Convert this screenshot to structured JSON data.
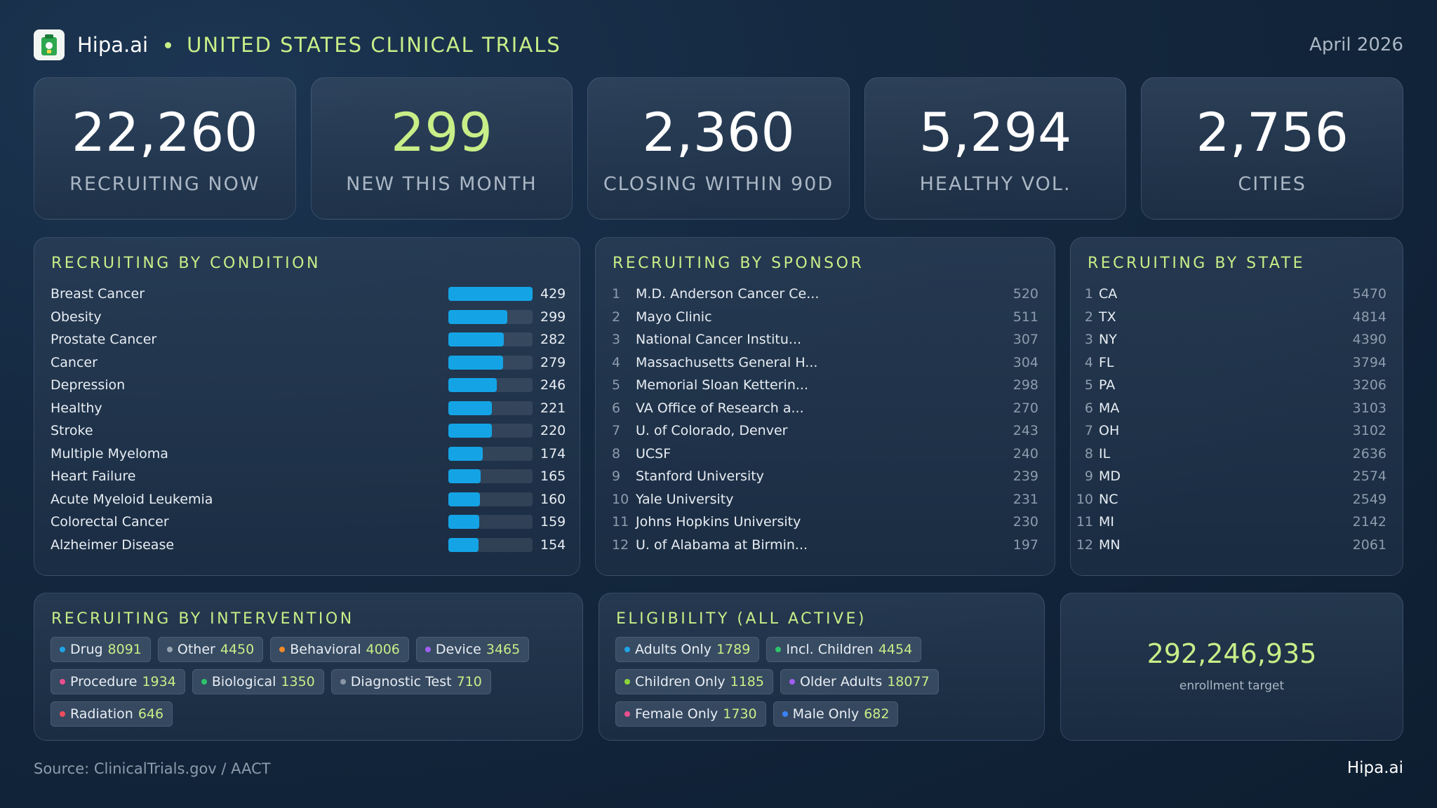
{
  "header": {
    "brand": "Hipa.ai",
    "title": "UNITED STATES  CLINICAL TRIALS",
    "date": "April 2026"
  },
  "kpis": [
    {
      "value": "22,260",
      "label": "RECRUITING NOW"
    },
    {
      "value": "299",
      "label": "NEW THIS MONTH"
    },
    {
      "value": "2,360",
      "label": "CLOSING WITHIN 90D"
    },
    {
      "value": "5,294",
      "label": "HEALTHY VOL."
    },
    {
      "value": "2,756",
      "label": "CITIES"
    }
  ],
  "conditions": {
    "title": "RECRUITING BY CONDITION",
    "bar_max": 429,
    "bar_color": "#14a4e6",
    "items": [
      {
        "name": "Breast Cancer",
        "value": 429
      },
      {
        "name": "Obesity",
        "value": 299
      },
      {
        "name": "Prostate Cancer",
        "value": 282
      },
      {
        "name": "Cancer",
        "value": 279
      },
      {
        "name": "Depression",
        "value": 246
      },
      {
        "name": "Healthy",
        "value": 221
      },
      {
        "name": "Stroke",
        "value": 220
      },
      {
        "name": "Multiple Myeloma",
        "value": 174
      },
      {
        "name": "Heart Failure",
        "value": 165
      },
      {
        "name": "Acute Myeloid Leukemia",
        "value": 160
      },
      {
        "name": "Colorectal Cancer",
        "value": 159
      },
      {
        "name": "Alzheimer Disease",
        "value": 154
      }
    ]
  },
  "sponsors": {
    "title": "RECRUITING BY SPONSOR",
    "items": [
      {
        "rank": "1",
        "name": "M.D. Anderson Cancer Ce...",
        "value": "520"
      },
      {
        "rank": "2",
        "name": "Mayo Clinic",
        "value": "511"
      },
      {
        "rank": "3",
        "name": "National Cancer Institu...",
        "value": "307"
      },
      {
        "rank": "4",
        "name": "Massachusetts General H...",
        "value": "304"
      },
      {
        "rank": "5",
        "name": "Memorial Sloan Ketterin...",
        "value": "298"
      },
      {
        "rank": "6",
        "name": "VA Office of Research a...",
        "value": "270"
      },
      {
        "rank": "7",
        "name": "U. of Colorado, Denver",
        "value": "243"
      },
      {
        "rank": "8",
        "name": "UCSF",
        "value": "240"
      },
      {
        "rank": "9",
        "name": "Stanford University",
        "value": "239"
      },
      {
        "rank": "10",
        "name": "Yale University",
        "value": "231"
      },
      {
        "rank": "11",
        "name": "Johns Hopkins University",
        "value": "230"
      },
      {
        "rank": "12",
        "name": "U. of Alabama at Birmin...",
        "value": "197"
      }
    ]
  },
  "states": {
    "title": "RECRUITING BY STATE",
    "items": [
      {
        "rank": "1",
        "name": "CA",
        "value": "5470"
      },
      {
        "rank": "2",
        "name": "TX",
        "value": "4814"
      },
      {
        "rank": "3",
        "name": "NY",
        "value": "4390"
      },
      {
        "rank": "4",
        "name": "FL",
        "value": "3794"
      },
      {
        "rank": "5",
        "name": "PA",
        "value": "3206"
      },
      {
        "rank": "6",
        "name": "MA",
        "value": "3103"
      },
      {
        "rank": "7",
        "name": "OH",
        "value": "3102"
      },
      {
        "rank": "8",
        "name": "IL",
        "value": "2636"
      },
      {
        "rank": "9",
        "name": "MD",
        "value": "2574"
      },
      {
        "rank": "10",
        "name": "NC",
        "value": "2549"
      },
      {
        "rank": "11",
        "name": "MI",
        "value": "2142"
      },
      {
        "rank": "12",
        "name": "MN",
        "value": "2061"
      }
    ]
  },
  "interventions": {
    "title": "RECRUITING BY INTERVENTION",
    "items": [
      {
        "name": "Drug",
        "value": "8091",
        "color": "#1fa4e6"
      },
      {
        "name": "Other",
        "value": "4450",
        "color": "#9aa5b3"
      },
      {
        "name": "Behavioral",
        "value": "4006",
        "color": "#f08a24"
      },
      {
        "name": "Device",
        "value": "3465",
        "color": "#a15ef0"
      },
      {
        "name": "Procedure",
        "value": "1934",
        "color": "#ec4f8f"
      },
      {
        "name": "Biological",
        "value": "1350",
        "color": "#2ec46a"
      },
      {
        "name": "Diagnostic Test",
        "value": "710",
        "color": "#8a96a5"
      },
      {
        "name": "Radiation",
        "value": "646",
        "color": "#ee4d5e"
      }
    ]
  },
  "eligibility": {
    "title": "ELIGIBILITY (ALL ACTIVE)",
    "items": [
      {
        "name": "Adults Only",
        "value": "1789",
        "color": "#1fa4e6"
      },
      {
        "name": "Incl. Children",
        "value": "4454",
        "color": "#2ec46a"
      },
      {
        "name": "Children Only",
        "value": "1185",
        "color": "#8cd63c"
      },
      {
        "name": "Older Adults",
        "value": "18077",
        "color": "#a15ef0"
      },
      {
        "name": "Female Only",
        "value": "1730",
        "color": "#ec4f8f"
      },
      {
        "name": "Male Only",
        "value": "682",
        "color": "#3b82f6"
      }
    ]
  },
  "enrollment": {
    "value": "292,246,935",
    "label": "enrollment target"
  },
  "footer": {
    "source": "Source: ClinicalTrials.gov / AACT",
    "brand": "Hipa.ai"
  }
}
